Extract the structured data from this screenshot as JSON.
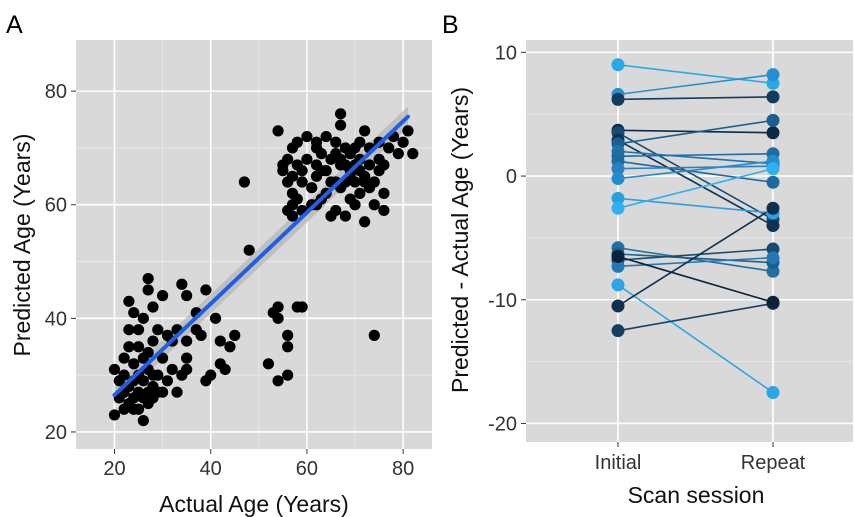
{
  "chart_data": [
    {
      "panel_label": "A",
      "type": "scatter",
      "xlabel": "Actual Age (Years)",
      "ylabel": "Predicted Age (Years)",
      "xlim": [
        12,
        86
      ],
      "ylim": [
        17,
        89
      ],
      "xticks": [
        20,
        40,
        60,
        80
      ],
      "yticks": [
        20,
        40,
        60,
        80
      ],
      "grid": true,
      "fit_line": {
        "x": [
          20,
          81
        ],
        "y": [
          26.5,
          75.5
        ],
        "color": "#1f5fe6",
        "band_color": "#b3b3b3"
      },
      "point_color": "#000000",
      "points": [
        [
          20,
          23
        ],
        [
          20,
          31
        ],
        [
          21,
          26
        ],
        [
          21,
          29
        ],
        [
          22,
          24
        ],
        [
          22,
          27
        ],
        [
          22,
          33
        ],
        [
          22,
          30
        ],
        [
          23,
          25
        ],
        [
          23,
          28
        ],
        [
          23,
          35
        ],
        [
          23,
          38
        ],
        [
          23,
          43
        ],
        [
          24,
          24
        ],
        [
          24,
          26
        ],
        [
          24,
          29
        ],
        [
          24,
          32
        ],
        [
          24,
          41
        ],
        [
          25,
          24
        ],
        [
          25,
          27
        ],
        [
          25,
          30
        ],
        [
          25,
          35
        ],
        [
          25,
          38
        ],
        [
          26,
          22
        ],
        [
          26,
          26
        ],
        [
          26,
          29
        ],
        [
          26,
          33
        ],
        [
          26,
          40
        ],
        [
          27,
          25
        ],
        [
          27,
          27
        ],
        [
          27,
          31
        ],
        [
          27,
          34
        ],
        [
          27,
          45
        ],
        [
          27,
          47
        ],
        [
          28,
          26
        ],
        [
          28,
          28
        ],
        [
          28,
          30
        ],
        [
          28,
          36
        ],
        [
          28,
          42
        ],
        [
          29,
          27
        ],
        [
          29,
          30
        ],
        [
          29,
          38
        ],
        [
          30,
          27
        ],
        [
          30,
          33
        ],
        [
          30,
          44
        ],
        [
          31,
          29
        ],
        [
          31,
          37
        ],
        [
          32,
          31
        ],
        [
          32,
          36
        ],
        [
          33,
          27
        ],
        [
          33,
          38
        ],
        [
          34,
          30
        ],
        [
          34,
          46
        ],
        [
          35,
          31
        ],
        [
          35,
          33
        ],
        [
          35,
          36
        ],
        [
          35,
          44
        ],
        [
          37,
          38
        ],
        [
          37,
          41
        ],
        [
          38,
          37
        ],
        [
          39,
          29
        ],
        [
          39,
          45
        ],
        [
          40,
          30
        ],
        [
          41,
          40
        ],
        [
          42,
          32
        ],
        [
          42,
          36
        ],
        [
          43,
          31
        ],
        [
          44,
          35
        ],
        [
          45,
          37
        ],
        [
          47,
          64
        ],
        [
          48,
          52
        ],
        [
          52,
          32
        ],
        [
          53,
          41
        ],
        [
          54,
          29
        ],
        [
          54,
          40
        ],
        [
          54,
          42
        ],
        [
          54,
          73
        ],
        [
          55,
          66
        ],
        [
          55,
          67
        ],
        [
          56,
          30
        ],
        [
          56,
          35
        ],
        [
          56,
          37
        ],
        [
          56,
          59
        ],
        [
          56,
          64
        ],
        [
          56,
          68
        ],
        [
          57,
          60
        ],
        [
          57,
          62
        ],
        [
          57,
          65
        ],
        [
          57,
          70
        ],
        [
          57,
          58
        ],
        [
          58,
          42
        ],
        [
          58,
          61
        ],
        [
          58,
          67
        ],
        [
          58,
          71
        ],
        [
          59,
          42
        ],
        [
          59,
          59
        ],
        [
          59,
          64
        ],
        [
          59,
          66
        ],
        [
          60,
          68
        ],
        [
          60,
          72
        ],
        [
          61,
          60
        ],
        [
          61,
          63
        ],
        [
          62,
          60
        ],
        [
          62,
          65
        ],
        [
          62,
          67
        ],
        [
          62,
          70
        ],
        [
          62,
          71
        ],
        [
          63,
          61
        ],
        [
          63,
          66
        ],
        [
          63,
          69
        ],
        [
          64,
          62
        ],
        [
          64,
          66
        ],
        [
          64,
          72
        ],
        [
          65,
          58
        ],
        [
          65,
          64
        ],
        [
          65,
          68
        ],
        [
          66,
          59
        ],
        [
          66,
          64
        ],
        [
          66,
          69
        ],
        [
          66,
          71
        ],
        [
          67,
          63
        ],
        [
          67,
          67
        ],
        [
          67,
          68
        ],
        [
          67,
          74
        ],
        [
          67,
          76
        ],
        [
          68,
          58
        ],
        [
          68,
          64
        ],
        [
          68,
          67
        ],
        [
          68,
          70
        ],
        [
          69,
          61
        ],
        [
          69,
          65
        ],
        [
          69,
          66
        ],
        [
          69,
          69
        ],
        [
          70,
          60
        ],
        [
          70,
          64
        ],
        [
          70,
          67
        ],
        [
          70,
          70
        ],
        [
          71,
          62
        ],
        [
          71,
          66
        ],
        [
          71,
          68
        ],
        [
          71,
          71
        ],
        [
          72,
          57
        ],
        [
          72,
          64
        ],
        [
          72,
          65
        ],
        [
          72,
          73
        ],
        [
          73,
          63
        ],
        [
          73,
          67
        ],
        [
          73,
          70
        ],
        [
          74,
          37
        ],
        [
          74,
          60
        ],
        [
          74,
          64
        ],
        [
          75,
          66
        ],
        [
          75,
          68
        ],
        [
          75,
          71
        ],
        [
          76,
          59
        ],
        [
          76,
          62
        ],
        [
          76,
          67
        ],
        [
          77,
          70
        ],
        [
          78,
          72
        ],
        [
          79,
          69
        ],
        [
          80,
          71
        ],
        [
          81,
          73
        ],
        [
          82,
          69
        ]
      ]
    },
    {
      "panel_label": "B",
      "type": "line",
      "xlabel": "Scan session",
      "ylabel": "Predicted - Actual Age (Years)",
      "categories": [
        "Initial",
        "Repeat"
      ],
      "ylim": [
        -21.5,
        11
      ],
      "yticks": [
        10,
        0,
        -10,
        -20
      ],
      "grid": true,
      "pairs": [
        {
          "initial": 9.0,
          "repeat": 7.5,
          "color": "#29a8e8"
        },
        {
          "initial": 6.6,
          "repeat": 8.2,
          "color": "#2590cf"
        },
        {
          "initial": 6.2,
          "repeat": 6.4,
          "color": "#123c5e"
        },
        {
          "initial": 3.7,
          "repeat": 3.5,
          "color": "#0c2a45"
        },
        {
          "initial": 3.5,
          "repeat": -3.5,
          "color": "#144a73"
        },
        {
          "initial": 2.9,
          "repeat": -4.0,
          "color": "#0e3252"
        },
        {
          "initial": 2.6,
          "repeat": 4.5,
          "color": "#1a5f8f"
        },
        {
          "initial": 2.0,
          "repeat": 1.0,
          "color": "#1d74ad"
        },
        {
          "initial": 1.6,
          "repeat": 1.8,
          "color": "#1e6da5"
        },
        {
          "initial": 1.2,
          "repeat": -0.5,
          "color": "#1d6aa0"
        },
        {
          "initial": 0.6,
          "repeat": 0.8,
          "color": "#2a7fbf"
        },
        {
          "initial": -0.2,
          "repeat": 1.2,
          "color": "#238ccb"
        },
        {
          "initial": -1.8,
          "repeat": -3.0,
          "color": "#2ba0e0"
        },
        {
          "initial": -2.6,
          "repeat": 0.6,
          "color": "#31b0ef"
        },
        {
          "initial": -5.8,
          "repeat": -7.7,
          "color": "#236f9e"
        },
        {
          "initial": -6.3,
          "repeat": -7.0,
          "color": "#1b5f8c"
        },
        {
          "initial": -6.8,
          "repeat": -5.9,
          "color": "#164b70"
        },
        {
          "initial": -7.3,
          "repeat": -6.6,
          "color": "#2279b5"
        },
        {
          "initial": -8.8,
          "repeat": -17.5,
          "color": "#2aa5e6"
        },
        {
          "initial": -10.5,
          "repeat": -2.6,
          "color": "#0e2f4d"
        },
        {
          "initial": -12.5,
          "repeat": -10.3,
          "color": "#153f62"
        },
        {
          "initial": -6.5,
          "repeat": -10.2,
          "color": "#0b2238"
        }
      ]
    }
  ]
}
